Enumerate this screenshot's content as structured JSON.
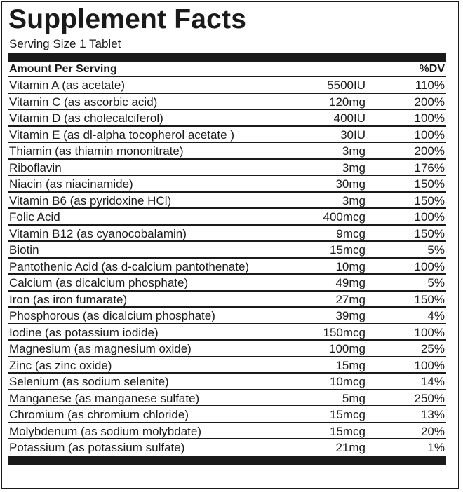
{
  "title": "Supplement Facts",
  "serving_size": "Serving Size 1 Tablet",
  "header": {
    "amount_label": "Amount Per Serving",
    "dv_label": "%DV"
  },
  "nutrients": [
    {
      "name": "Vitamin A (as acetate)",
      "amount": "5500IU",
      "dv": "110%"
    },
    {
      "name": "Vitamin C (as ascorbic acid)",
      "amount": "120mg",
      "dv": "200%"
    },
    {
      "name": "Vitamin D (as cholecalciferol)",
      "amount": "400IU",
      "dv": "100%"
    },
    {
      "name": "Vitamin E (as dl-alpha tocopherol acetate  )",
      "amount": "30IU",
      "dv": "100%"
    },
    {
      "name": "Thiamin (as thiamin mononitrate)",
      "amount": "3mg",
      "dv": "200%"
    },
    {
      "name": "Riboflavin",
      "amount": "3mg",
      "dv": "176%"
    },
    {
      "name": "Niacin (as niacinamide)",
      "amount": "30mg",
      "dv": "150%"
    },
    {
      "name": "Vitamin B6 (as pyridoxine HCl)",
      "amount": "3mg",
      "dv": "150%"
    },
    {
      "name": "Folic Acid",
      "amount": "400mcg",
      "dv": "100%"
    },
    {
      "name": "Vitamin B12 (as cyanocobalamin)",
      "amount": "9mcg",
      "dv": "150%"
    },
    {
      "name": "Biotin",
      "amount": "15mcg",
      "dv": "5%"
    },
    {
      "name": "Pantothenic Acid (as d-calcium pantothenate)",
      "amount": "10mg",
      "dv": "100%"
    },
    {
      "name": "Calcium (as dicalcium phosphate)",
      "amount": "49mg",
      "dv": "5%"
    },
    {
      "name": "Iron (as iron fumarate)",
      "amount": "27mg",
      "dv": "150%"
    },
    {
      "name": "Phosphorous (as dicalcium phosphate)",
      "amount": "39mg",
      "dv": "4%"
    },
    {
      "name": "Iodine (as potassium iodide)",
      "amount": "150mcg",
      "dv": "100%"
    },
    {
      "name": "Magnesium (as magnesium oxide)",
      "amount": "100mg",
      "dv": "25%"
    },
    {
      "name": "Zinc (as zinc oxide)",
      "amount": "15mg",
      "dv": "100%"
    },
    {
      "name": "Selenium (as sodium selenite)",
      "amount": "10mcg",
      "dv": "14%"
    },
    {
      "name": "Manganese (as manganese sulfate)",
      "amount": "5mg",
      "dv": "250%"
    },
    {
      "name": "Chromium (as chromium chloride)",
      "amount": "15mcg",
      "dv": "13%"
    },
    {
      "name": "Molybdenum (as sodium molybdate)",
      "amount": "15mcg",
      "dv": "20%"
    },
    {
      "name": "Potassium (as potassium sulfate)",
      "amount": "21mg",
      "dv": "1%"
    }
  ]
}
